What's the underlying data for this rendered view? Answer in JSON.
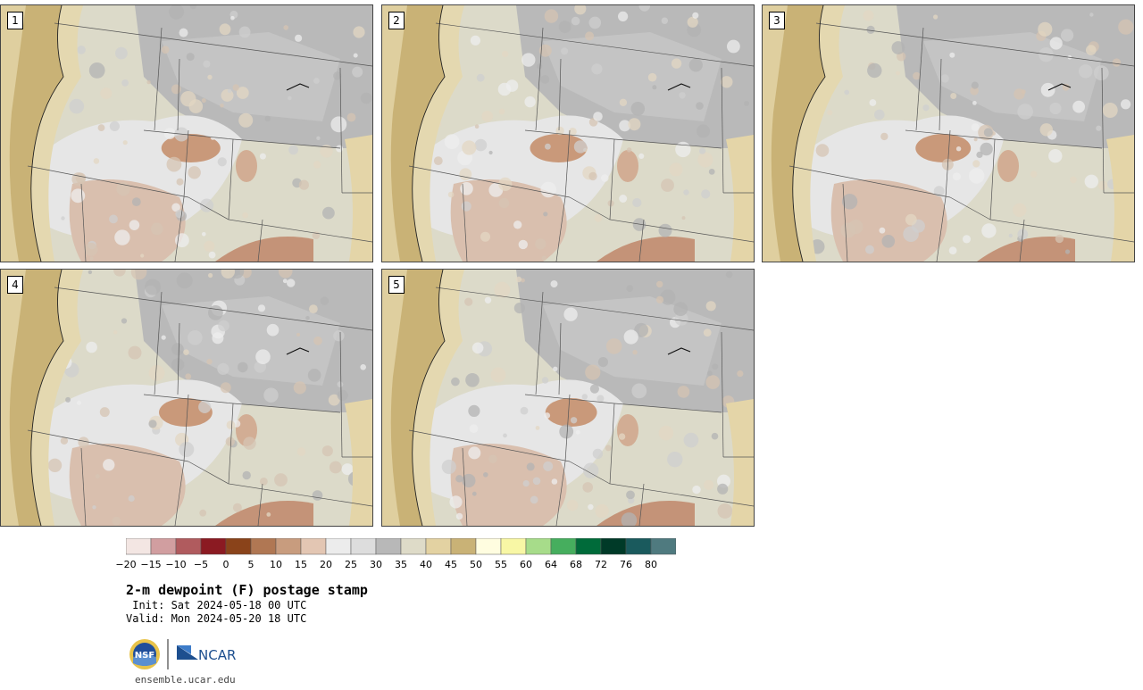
{
  "panels": [
    {
      "label": "1"
    },
    {
      "label": "2"
    },
    {
      "label": "3"
    },
    {
      "label": "4"
    },
    {
      "label": "5"
    }
  ],
  "colorbar": {
    "colors": [
      "#f3e6e3",
      "#d19ea0",
      "#b05b5e",
      "#8b1a22",
      "#8a431a",
      "#b07753",
      "#c89c7e",
      "#e3c6b3",
      "#ececec",
      "#dddddd",
      "#b8b8b8",
      "#dedbc8",
      "#e3d2a2",
      "#c9b276",
      "#fffde0",
      "#f8f7a5",
      "#a7dc8a",
      "#46ae5e",
      "#006b3a",
      "#003a28",
      "#1a5a5d",
      "#4f7a7f"
    ],
    "tick_labels": [
      "−20",
      "−15",
      "−10",
      "−5",
      "0",
      "5",
      "10",
      "15",
      "20",
      "25",
      "30",
      "35",
      "40",
      "45",
      "50",
      "55",
      "60",
      "64",
      "68",
      "72",
      "76",
      "80"
    ]
  },
  "title": "2-m dewpoint (F) postage stamp",
  "init": " Init: Sat 2024-05-18 00 UTC",
  "valid": "Valid: Mon 2024-05-20 18 UTC",
  "logos": {
    "nsf_text": "NSF",
    "ncar_text": "NCAR"
  },
  "url": "ensemble.ucar.edu"
}
